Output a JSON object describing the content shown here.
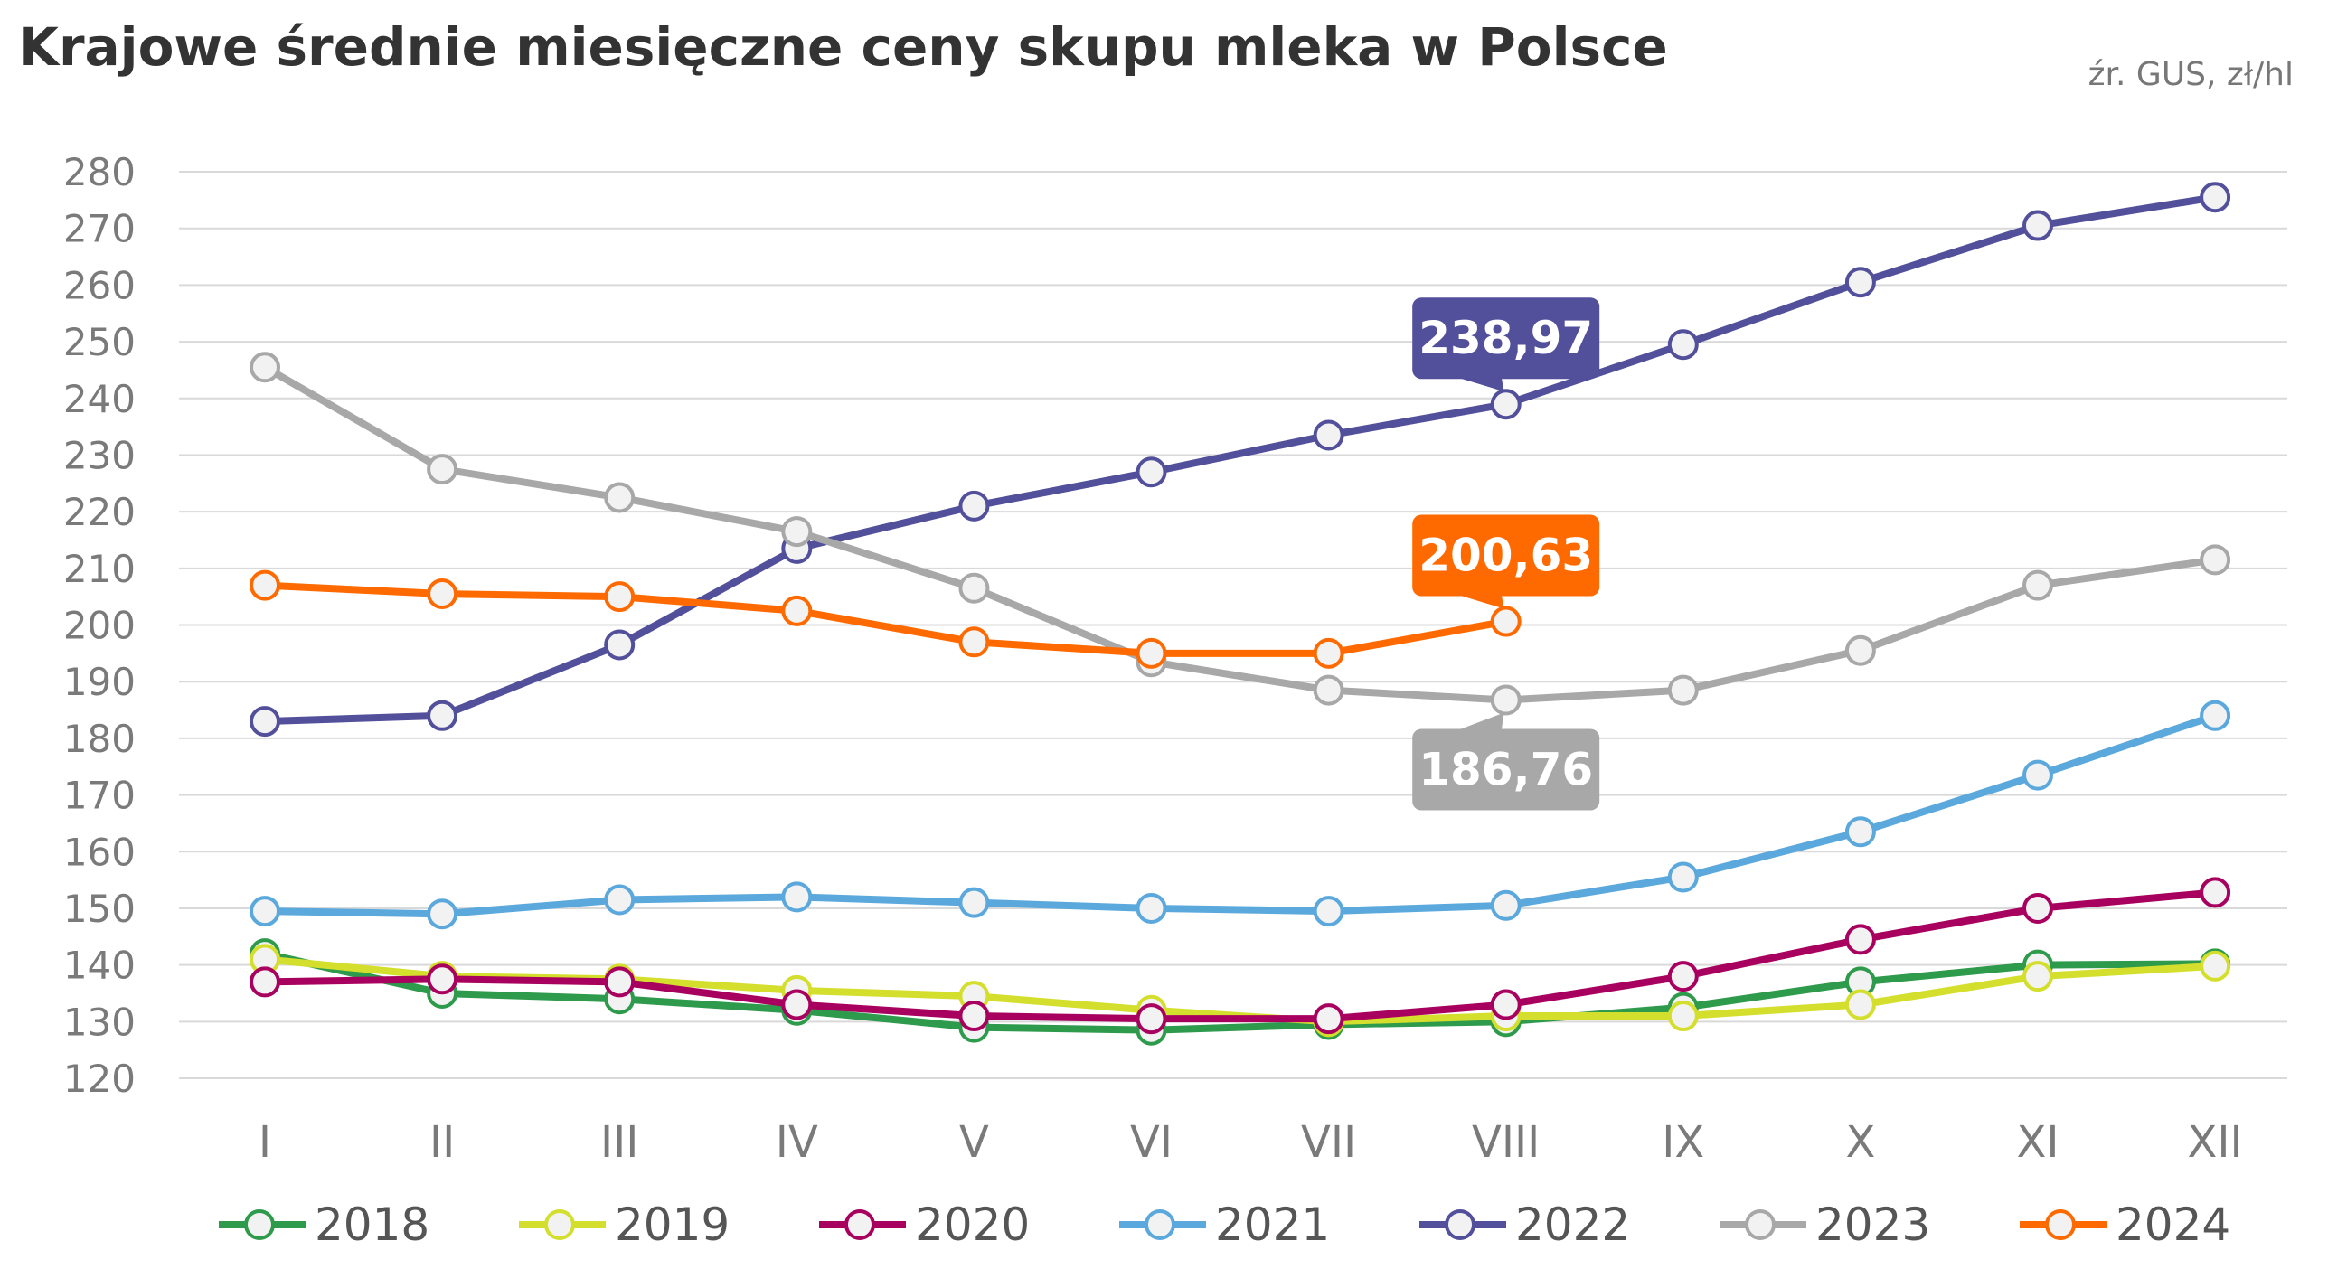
{
  "chart_data": {
    "type": "line",
    "title": "Krajowe średnie miesięczne ceny skupu mleka w Polsce",
    "source_note": "źr. GUS, zł/hl",
    "xlabel": "",
    "ylabel": "",
    "ylim": [
      120,
      280
    ],
    "y_ticks": [
      "120",
      "130",
      "140",
      "150",
      "160",
      "170",
      "180",
      "190",
      "200",
      "210",
      "220",
      "230",
      "240",
      "250",
      "260",
      "270",
      "280"
    ],
    "y_tick_values": [
      120,
      130,
      140,
      150,
      160,
      170,
      180,
      190,
      200,
      210,
      220,
      230,
      240,
      250,
      260,
      270,
      280
    ],
    "grid": true,
    "legend_position": "bottom",
    "categories": [
      "I",
      "II",
      "III",
      "IV",
      "V",
      "VI",
      "VII",
      "VIII",
      "IX",
      "X",
      "XI",
      "XII"
    ],
    "series": [
      {
        "name": "2018",
        "color": "#2e9a4c",
        "values": [
          142.0,
          135.0,
          134.0,
          132.0,
          129.0,
          128.5,
          129.5,
          130.0,
          132.5,
          137.0,
          140.0,
          140.2
        ]
      },
      {
        "name": "2019",
        "color": "#d4de2c",
        "values": [
          141.0,
          138.0,
          137.5,
          135.5,
          134.5,
          132.0,
          130.0,
          131.0,
          131.0,
          133.0,
          138.0,
          139.8
        ]
      },
      {
        "name": "2020",
        "color": "#a8005f",
        "values": [
          137.0,
          137.5,
          137.0,
          133.0,
          131.0,
          130.5,
          130.5,
          133.0,
          138.0,
          144.5,
          150.0,
          152.8
        ]
      },
      {
        "name": "2021",
        "color": "#5ba8dc",
        "values": [
          149.5,
          149.0,
          151.5,
          152.0,
          151.0,
          150.0,
          149.5,
          150.5,
          155.5,
          163.5,
          173.5,
          184.0
        ]
      },
      {
        "name": "2022",
        "color": "#524f9b",
        "values": [
          183.0,
          184.0,
          196.5,
          213.5,
          221.0,
          227.0,
          233.5,
          238.97,
          249.5,
          260.5,
          270.5,
          275.5
        ]
      },
      {
        "name": "2023",
        "color": "#a8a8a8",
        "values": [
          245.5,
          227.5,
          222.5,
          216.5,
          206.5,
          193.5,
          188.5,
          186.76,
          188.5,
          195.5,
          207.0,
          211.5
        ]
      },
      {
        "name": "2024",
        "color": "#ff6a00",
        "values": [
          207.0,
          205.5,
          205.0,
          202.5,
          197.0,
          195.0,
          195.0,
          200.63,
          null,
          null,
          null,
          null
        ]
      }
    ],
    "annotations": [
      {
        "label": "238,97",
        "series": "2022",
        "category_index": 7,
        "color": "#524f9b",
        "placement": "above"
      },
      {
        "label": "200,63",
        "series": "2024",
        "category_index": 7,
        "color": "#ff6a00",
        "placement": "above"
      },
      {
        "label": "186,76",
        "series": "2023",
        "category_index": 7,
        "color": "#a8a8a8",
        "placement": "below"
      }
    ]
  }
}
